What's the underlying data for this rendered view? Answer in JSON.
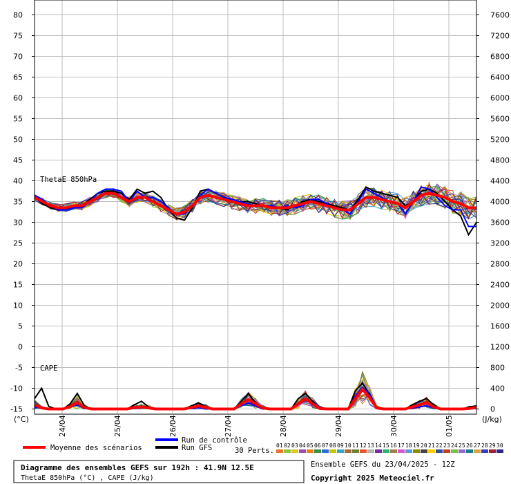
{
  "chart_data": {
    "type": "line",
    "left_axis": {
      "unit": "(°C)",
      "ticks": [
        -15,
        -10,
        -5,
        0,
        5,
        10,
        15,
        20,
        25,
        30,
        35,
        40,
        45,
        50,
        55,
        60,
        65,
        70,
        75,
        80
      ],
      "ylim": [
        -15,
        82
      ]
    },
    "right_axis": {
      "unit": "(J/kg)",
      "ticks": [
        0,
        400,
        800,
        1200,
        1600,
        2000,
        2400,
        2800,
        3200,
        3600,
        4000,
        4400,
        4800,
        5200,
        5600,
        6000,
        6400,
        6800,
        7200,
        7600
      ],
      "ylim": [
        0,
        7760
      ]
    },
    "x_labels": [
      "24/04",
      "25/04",
      "26/04",
      "27/04",
      "28/04",
      "29/04",
      "30/04",
      "01/05"
    ],
    "x_range_hours": [
      0,
      192
    ],
    "grid": true,
    "annotations": {
      "thetae": "ThetaE 850hPa",
      "cape": "CAPE"
    },
    "thetae_mean": [
      36,
      35,
      34,
      33.5,
      33.5,
      34,
      34,
      35,
      36,
      37,
      37,
      36,
      35,
      36,
      36,
      35,
      34,
      33,
      32,
      32.5,
      34,
      36,
      36.5,
      36,
      35.5,
      35,
      34.5,
      34,
      34,
      34,
      33.5,
      33.5,
      33.5,
      34,
      34.5,
      35,
      34.5,
      34,
      33.5,
      33,
      33,
      34.5,
      36,
      36,
      35.5,
      35,
      34.5,
      33.5,
      35,
      36.5,
      37,
      36.5,
      36,
      35,
      34.5,
      33.5,
      33.5
    ],
    "thetae_control": [
      36.5,
      35.5,
      34,
      33,
      33,
      33.5,
      33.5,
      35,
      37,
      38,
      38,
      37.5,
      35,
      37.5,
      36,
      36,
      35,
      33.5,
      32,
      32,
      34,
      36.5,
      38,
      37,
      36,
      35.5,
      35,
      34.5,
      34,
      34,
      34,
      33.5,
      34,
      33.5,
      34,
      35.5,
      35.5,
      34.5,
      33.5,
      33,
      32,
      35,
      38,
      37,
      36,
      35,
      34.5,
      32,
      35,
      38.5,
      38,
      36,
      34,
      33,
      33,
      29,
      29
    ],
    "thetae_gfs": [
      36,
      34.5,
      33.5,
      33,
      33,
      33.5,
      34,
      35.5,
      37,
      37.5,
      37.5,
      37,
      35.5,
      38,
      37,
      37.5,
      36,
      33,
      31,
      30.5,
      33.5,
      37.5,
      38,
      37,
      36,
      35.5,
      35,
      35,
      34.5,
      34,
      34,
      33.5,
      33,
      34,
      35,
      35.5,
      35,
      34.5,
      34,
      33.5,
      33,
      35.5,
      38.5,
      37.5,
      37,
      36.5,
      36,
      34,
      35,
      37.5,
      38,
      37,
      35,
      33,
      31.5,
      27,
      30
    ],
    "cape_mean": [
      80,
      20,
      0,
      0,
      0,
      50,
      120,
      30,
      0,
      0,
      0,
      0,
      0,
      0,
      30,
      40,
      20,
      0,
      0,
      0,
      0,
      0,
      30,
      60,
      30,
      0,
      0,
      0,
      0,
      100,
      180,
      100,
      20,
      0,
      0,
      0,
      0,
      100,
      200,
      100,
      10,
      0,
      0,
      0,
      0,
      200,
      380,
      220,
      20,
      0,
      0,
      0,
      0,
      40,
      80,
      120,
      40,
      0,
      0,
      0,
      0,
      10,
      30
    ],
    "cape_control": [
      30,
      20,
      0,
      0,
      0,
      40,
      80,
      10,
      0,
      0,
      0,
      0,
      0,
      0,
      20,
      60,
      10,
      0,
      0,
      0,
      0,
      0,
      10,
      30,
      0,
      0,
      0,
      0,
      0,
      60,
      120,
      60,
      0,
      0,
      0,
      0,
      0,
      80,
      180,
      80,
      0,
      0,
      0,
      0,
      0,
      250,
      420,
      300,
      20,
      0,
      0,
      0,
      0,
      20,
      40,
      60,
      20,
      0,
      0,
      0,
      0,
      0,
      10
    ],
    "cape_gfs": [
      200,
      400,
      50,
      0,
      0,
      100,
      300,
      60,
      0,
      0,
      0,
      0,
      0,
      0,
      80,
      150,
      40,
      0,
      0,
      0,
      0,
      0,
      60,
      120,
      40,
      0,
      0,
      0,
      0,
      150,
      300,
      120,
      20,
      0,
      0,
      0,
      0,
      200,
      300,
      150,
      0,
      0,
      0,
      0,
      0,
      350,
      500,
      280,
      40,
      0,
      0,
      0,
      0,
      80,
      150,
      200,
      80,
      0,
      0,
      0,
      0,
      40,
      60
    ],
    "series": [
      {
        "name": "Moyenne des scénarios",
        "color": "#ff0000"
      },
      {
        "name": "Run de contrôle",
        "color": "#0000ff"
      },
      {
        "name": "Run GFS",
        "color": "#000000"
      }
    ],
    "members_count": 30
  },
  "legend": {
    "mean": "Moyenne des scénarios",
    "control": "Run de contrôle",
    "gfs": "Run GFS",
    "perts": "30 Perts.",
    "member_numbers": [
      "01",
      "02",
      "03",
      "04",
      "05",
      "06",
      "07",
      "08",
      "09",
      "10",
      "11",
      "12",
      "13",
      "14",
      "15",
      "16",
      "17",
      "18",
      "19",
      "20",
      "21",
      "22",
      "23",
      "24",
      "25",
      "26",
      "27",
      "28",
      "29",
      "30"
    ],
    "member_colors": [
      "#e8762b",
      "#8cc63f",
      "#e6c22b",
      "#9c4fb0",
      "#ef7f1a",
      "#3c8f3c",
      "#2a6fdb",
      "#c9c400",
      "#38a7c4",
      "#a66b3b",
      "#6f7f2f",
      "#e4572e",
      "#b5b5b5",
      "#7a2ca0",
      "#2bb673",
      "#a67c52",
      "#d15bd1",
      "#5b9bd5",
      "#8b8b00",
      "#444444",
      "#ffcc00",
      "#2f4f9f",
      "#c73e1d",
      "#7cc242",
      "#8e6ec8",
      "#1a7d8c",
      "#d9a441",
      "#3b3bc4",
      "#a31f34",
      "#2a2a8a"
    ]
  },
  "info": {
    "title": "Diagramme des ensembles GEFS sur 192h : 41.9N 12.5E",
    "subtitle": "ThetaE 850hPa (°C) , CAPE (J/kg)",
    "run": "Ensemble GEFS du 23/04/2025 - 12Z",
    "copyright": "Copyright 2025 Meteociel.fr"
  }
}
